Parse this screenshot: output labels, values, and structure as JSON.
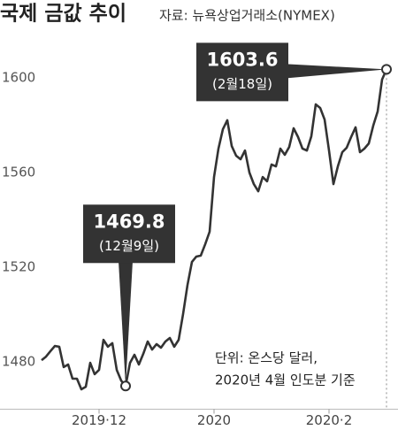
{
  "chart_data": {
    "type": "line",
    "title": "국제 금값 추이",
    "subtitle": "자료: 뉴욕상업거래소(NYMEX)",
    "note": [
      "단위: 온스당 달러,",
      "2020년 4월 인도분 기준"
    ],
    "categories": [
      null,
      null,
      null,
      null,
      null,
      null,
      null,
      null,
      null,
      null,
      null,
      null,
      null,
      "2019·12",
      null,
      null,
      null,
      null,
      null,
      null,
      null,
      null,
      null,
      null,
      null,
      null,
      null,
      null,
      null,
      null,
      null,
      null,
      null,
      null,
      null,
      null,
      null,
      null,
      null,
      "2020",
      null,
      null,
      null,
      null,
      null,
      null,
      null,
      null,
      null,
      null,
      null,
      null,
      null,
      null,
      null,
      null,
      null,
      null,
      null,
      null,
      null,
      null,
      null,
      null,
      null,
      "2020·2",
      null,
      null,
      null,
      null,
      null,
      null,
      null,
      null,
      null,
      null,
      null,
      null,
      null
    ],
    "values": [
      1480.7,
      1482.2,
      1484.5,
      1486.7,
      1486.4,
      1477.8,
      1478.9,
      1472.9,
      1472.9,
      1468.4,
      1469.5,
      1479.6,
      1474.8,
      1476.6,
      1489.3,
      1486.4,
      1487.9,
      1476.6,
      1472.1,
      1469.8,
      1479.6,
      1483.0,
      1478.9,
      1483.4,
      1488.6,
      1485.2,
      1487.5,
      1486.0,
      1488.6,
      1490.1,
      1486.4,
      1489.3,
      1500.2,
      1512.5,
      1522.2,
      1524.5,
      1524.9,
      1529.7,
      1535.0,
      1558.1,
      1570.1,
      1578.3,
      1582.1,
      1571.2,
      1567.1,
      1565.6,
      1569.3,
      1560.0,
      1555.1,
      1552.1,
      1558.1,
      1556.3,
      1563.4,
      1562.6,
      1570.1,
      1567.5,
      1570.8,
      1578.7,
      1575.0,
      1570.1,
      1569.3,
      1575.3,
      1588.8,
      1587.3,
      1582.4,
      1569.3,
      1555.1,
      1562.6,
      1568.6,
      1570.5,
      1575.0,
      1579.1,
      1568.6,
      1570.1,
      1572.3,
      1579.8,
      1585.8,
      1599.3,
      1603.6
    ],
    "color": "#333333",
    "annotations": [
      {
        "point": 19,
        "text": "(12월9일)"
      },
      {
        "point": 78,
        "text": "(2월18일)"
      }
    ],
    "ylim": [
      1460,
      1610
    ],
    "yticks": [
      1480,
      1520,
      1560,
      1600
    ]
  }
}
